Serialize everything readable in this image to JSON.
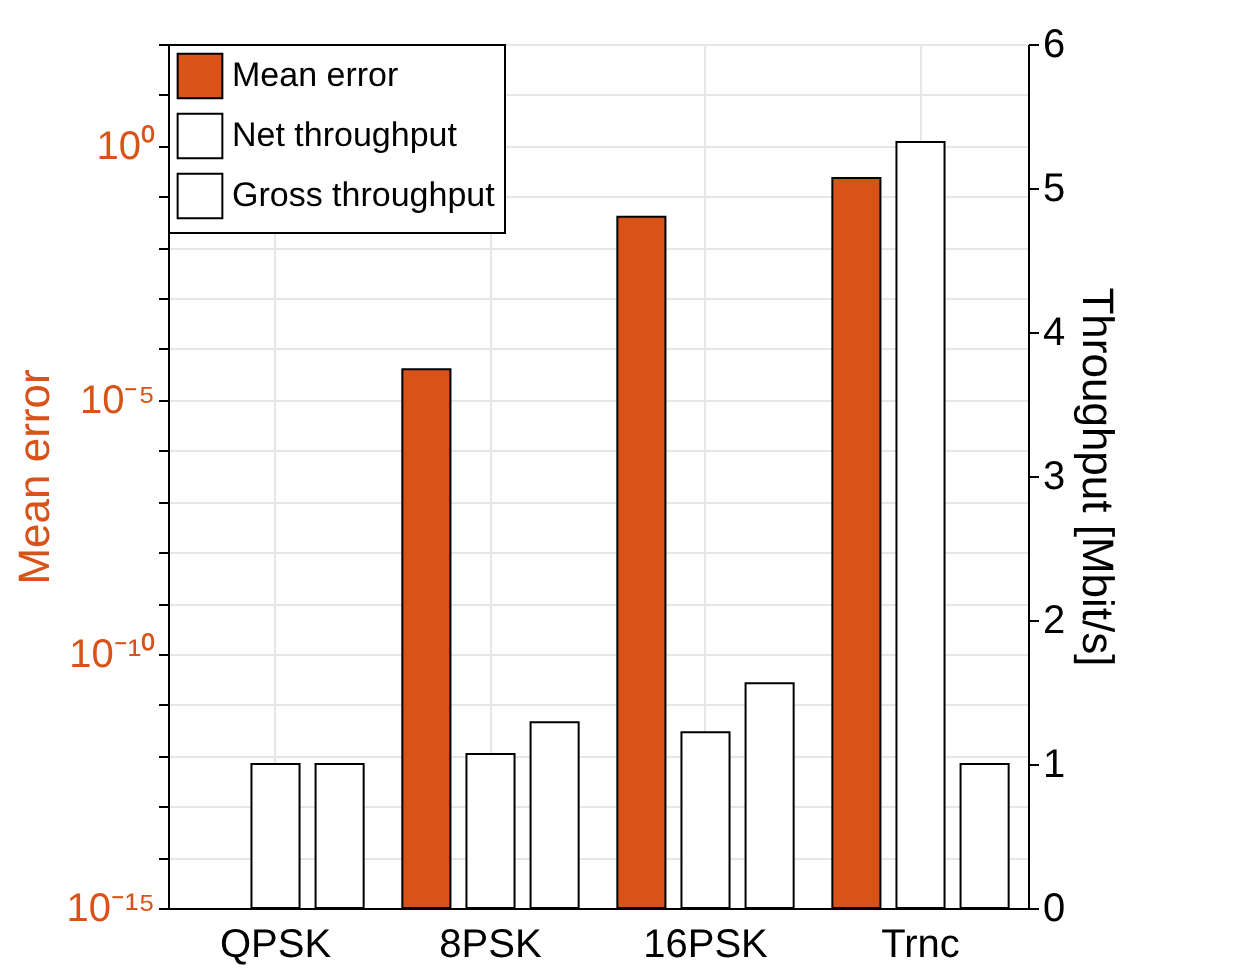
{
  "chart_data": {
    "type": "bar",
    "categories": [
      "QPSK",
      "8PSK",
      "16PSK",
      "Trnc"
    ],
    "ylabel": "Mean error",
    "y2label": "Throughput [Mbit/s]",
    "log": "y",
    "ylim": [
      1e-15,
      100
    ],
    "yticks": [
      {
        "value": 1e-15,
        "label": "10⁻¹⁵"
      },
      {
        "value": 1e-14,
        "label": null
      },
      {
        "value": 1e-13,
        "label": null
      },
      {
        "value": 1e-12,
        "label": null
      },
      {
        "value": 1e-11,
        "label": null
      },
      {
        "value": 1e-10,
        "label": "10⁻¹⁰"
      },
      {
        "value": 1e-09,
        "label": null
      },
      {
        "value": 1e-08,
        "label": null
      },
      {
        "value": 1e-07,
        "label": null
      },
      {
        "value": 1e-06,
        "label": null
      },
      {
        "value": 1e-05,
        "label": "10⁻⁵"
      },
      {
        "value": 0.0001,
        "label": null
      },
      {
        "value": 0.001,
        "label": null
      },
      {
        "value": 0.01,
        "label": null
      },
      {
        "value": 0.1,
        "label": null
      },
      {
        "value": 1,
        "label": "10⁰"
      },
      {
        "value": 10,
        "label": null
      },
      {
        "value": 100,
        "label": null
      }
    ],
    "y2lim": [
      0,
      6
    ],
    "y2ticks": [
      0,
      1,
      2,
      3,
      4,
      5,
      6
    ],
    "grid": true,
    "legend": "top left",
    "series": [
      {
        "name": "Mean error",
        "color": "#d95319",
        "values": [
          null,
          4e-05,
          0.04,
          0.23
        ]
      },
      {
        "name": "Net throughput",
        "color": "#ffffff",
        "axis": "y2",
        "values": [
          1.0,
          1.07,
          1.22,
          5.32
        ]
      },
      {
        "name": "Gross throughput",
        "color": "#ffffff",
        "axis": "y2",
        "values": [
          1.0,
          1.29,
          1.56,
          1.0
        ]
      }
    ]
  }
}
